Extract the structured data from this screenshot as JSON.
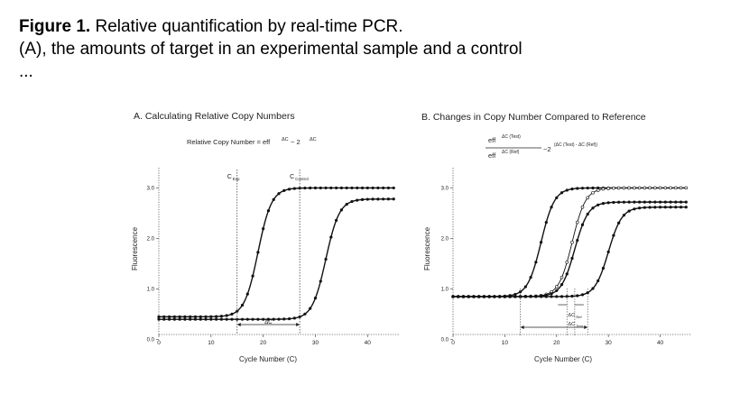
{
  "caption": {
    "figure_label": "Figure 1.",
    "title": "Relative quantification by real-time PCR.",
    "line2": "(A), the amounts of target in an experimental sample and a control",
    "line3": "..."
  },
  "chart_data": [
    {
      "type": "line",
      "title": "A. Calculating Relative Copy Numbers",
      "formula_text": "Relative Copy Number = eff",
      "formula_sup1": "ΔC",
      "formula_mid": "~ 2",
      "formula_sup2": "ΔC",
      "xlabel": "Cycle Number (C)",
      "ylabel": "Fluorescence",
      "xlim": [
        0,
        46
      ],
      "ylim": [
        0.1,
        3.4
      ],
      "xticks": [
        "0",
        "10",
        "20",
        "30",
        "40"
      ],
      "xtick_values": [
        0,
        10,
        20,
        30,
        40
      ],
      "yticks": [
        "0.0",
        "1.0",
        "2.0",
        "3.0"
      ],
      "ytick_values": [
        0.0,
        1.0,
        2.0,
        3.0
      ],
      "threshold_labels": [
        {
          "label": "C",
          "sub": "Exp",
          "x": 15
        },
        {
          "label": "C",
          "sub": "Control",
          "x": 27
        }
      ],
      "delta_label": "ΔC",
      "series": [
        {
          "midpoint": 19,
          "baseline": 0.45,
          "plateau": 3.0,
          "slope": 1.3
        },
        {
          "midpoint": 32,
          "baseline": 0.4,
          "plateau": 2.78,
          "slope": 1.3
        }
      ]
    },
    {
      "type": "line",
      "title": "B. Changes in Copy Number Compared to Reference",
      "formula_num": "eff",
      "formula_num_sup": "ΔC (Test)",
      "formula_den": "eff",
      "formula_den_sup": "ΔC (Ref)",
      "formula_rhs": "~2",
      "formula_rhs_sup": "(ΔC (Test) - ΔC (Ref))",
      "xlabel": "Cycle Number (C)",
      "ylabel": "Fluorescence",
      "xlim": [
        0,
        46
      ],
      "ylim": [
        0.1,
        3.4
      ],
      "xticks": [
        "0",
        "10",
        "20",
        "30",
        "40"
      ],
      "xtick_values": [
        0,
        10,
        20,
        30,
        40
      ],
      "yticks": [
        "0.0",
        "1.0",
        "2.0",
        "3.0"
      ],
      "ytick_values": [
        0.0,
        1.0,
        2.0,
        3.0
      ],
      "delta_ref_label": "ΔC",
      "delta_ref_sub": "Ref",
      "delta_test_label": "ΔC",
      "delta_test_sub": "Test",
      "series": [
        {
          "midpoint": 17,
          "baseline": 0.85,
          "plateau": 3.0,
          "slope": 1.3,
          "style": "solid"
        },
        {
          "midpoint": 23,
          "baseline": 0.85,
          "plateau": 3.0,
          "slope": 1.3,
          "style": "open"
        },
        {
          "midpoint": 23.5,
          "baseline": 0.85,
          "plateau": 2.72,
          "slope": 1.3,
          "style": "solid"
        },
        {
          "midpoint": 30,
          "baseline": 0.85,
          "plateau": 2.62,
          "slope": 1.3,
          "style": "solid"
        }
      ]
    }
  ]
}
